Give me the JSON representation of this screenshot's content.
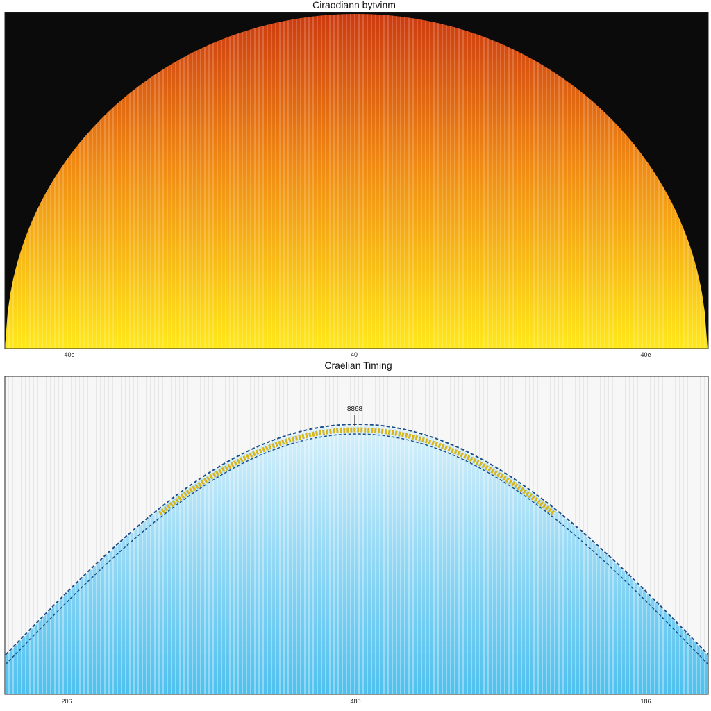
{
  "chart_data": [
    {
      "type": "area",
      "title": "Ciraodiann bytvinm",
      "x_tick_labels": [
        "40e",
        "40",
        "40e"
      ],
      "shape": "semicircle",
      "colors": {
        "background": "#0b0b0b",
        "top": "#cc3a10",
        "middle": "#f08a14",
        "bottom": "#ffe81a"
      },
      "grid": false
    },
    {
      "type": "area",
      "title": "Craelian Timing",
      "x_tick_labels": [
        "206",
        "480",
        "186"
      ],
      "shape": "arch",
      "annotation": "8868",
      "colors": {
        "background": "#f7f7f7",
        "fill_top": "#d8f0fb",
        "fill_bottom": "#4ec0ee",
        "band": "#d9b51a",
        "dashed_line": "#1d4f8a"
      },
      "grid": false
    }
  ]
}
